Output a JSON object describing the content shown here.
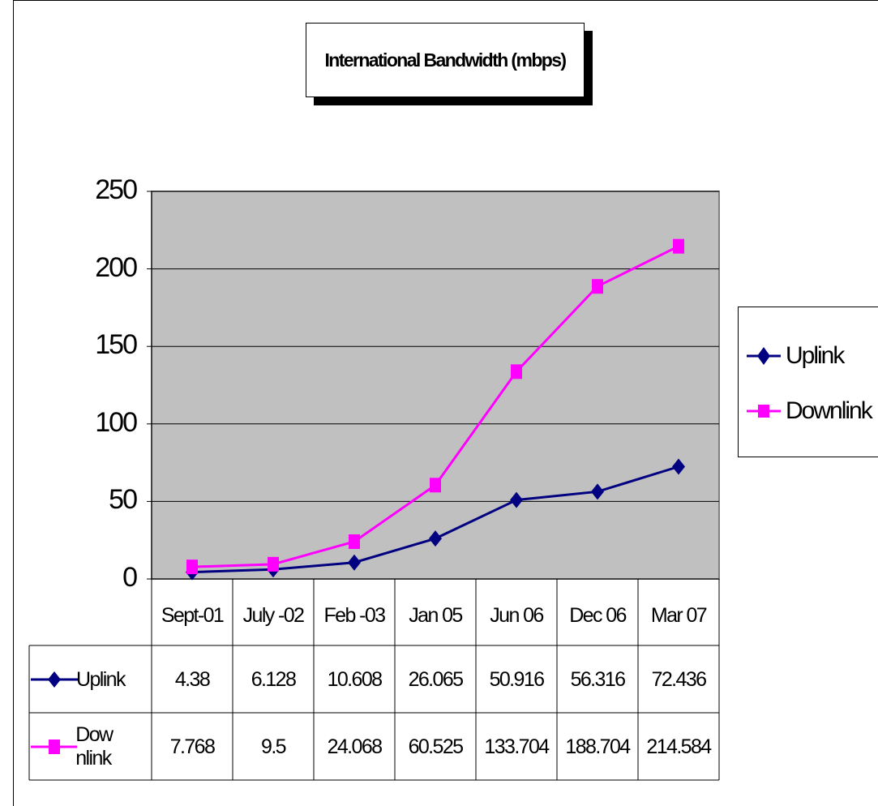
{
  "chart_data": {
    "type": "line",
    "title": "International Bandwidth (mbps)",
    "categories": [
      "Sept-01",
      "July -02",
      "Feb -03",
      "Jan 05",
      "Jun 06",
      "Dec 06",
      "Mar 07"
    ],
    "ylim": [
      0,
      250
    ],
    "yticks": [
      "0",
      "50",
      "100",
      "150",
      "200",
      "250"
    ],
    "grid": true,
    "legend_position": "right",
    "plot_background": "#c0c0c0",
    "series": [
      {
        "name": "Uplink",
        "table_label": "Uplink",
        "color": "#000080",
        "marker": "diamond",
        "values": [
          4.38,
          6.128,
          10.608,
          26.065,
          50.916,
          56.316,
          72.436
        ],
        "labels": [
          "4.38",
          "6.128",
          "10.608",
          "26.065",
          "50.916",
          "56.316",
          "72.436"
        ]
      },
      {
        "name": "Downlink",
        "table_label": "Dow nlink",
        "color": "#ff00ff",
        "marker": "square",
        "values": [
          7.768,
          9.5,
          24.068,
          60.525,
          133.704,
          188.704,
          214.584
        ],
        "labels": [
          "7.768",
          "9.5",
          "24.068",
          "60.525",
          "133.704",
          "188.704",
          "214.584"
        ]
      }
    ]
  }
}
